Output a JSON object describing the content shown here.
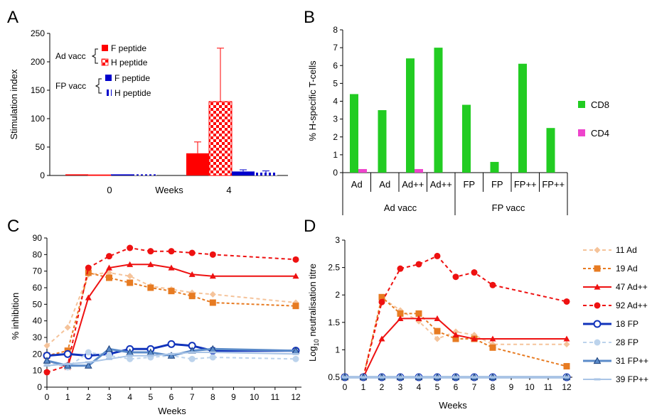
{
  "panels": {
    "A": {
      "letter": "A",
      "ylabel": "Stimulation index",
      "xlabel": "Weeks",
      "yticks": [
        "0",
        "50",
        "100",
        "150",
        "200",
        "250"
      ],
      "ylim": [
        0,
        250
      ],
      "groups": [
        "0",
        "4"
      ],
      "legend": {
        "ad_group": "Ad vacc",
        "fp_group": "FP vacc",
        "items": [
          "F peptide",
          "H peptide",
          "F peptide",
          "H peptide"
        ]
      }
    },
    "B": {
      "letter": "B",
      "ylabel": "% H-specific T-cells",
      "yticks": [
        "0",
        "1",
        "2",
        "3",
        "4",
        "5",
        "6",
        "7",
        "8"
      ],
      "ylim": [
        0,
        8
      ],
      "categories": [
        "Ad",
        "Ad",
        "Ad++",
        "Ad++",
        "FP",
        "FP",
        "FP++",
        "FP++"
      ],
      "groups": [
        "Ad vacc",
        "FP vacc"
      ],
      "legend": [
        "CD8",
        "CD4"
      ]
    },
    "C": {
      "letter": "C",
      "ylabel": "% inhibition",
      "xlabel": "Weeks",
      "yticks": [
        "0",
        "10",
        "20",
        "30",
        "40",
        "50",
        "60",
        "70",
        "80",
        "90"
      ],
      "xticks": [
        "0",
        "1",
        "2",
        "3",
        "4",
        "5",
        "6",
        "7",
        "8",
        "9",
        "10",
        "11",
        "12"
      ],
      "ylim": [
        0,
        90
      ]
    },
    "D": {
      "letter": "D",
      "ylabel_main": "Log",
      "ylabel_sub": "10",
      "ylabel_rest": " neutralisation titre",
      "xlabel": "Weeks",
      "yticks": [
        "0.5",
        "1",
        "1.5",
        "2",
        "2.5",
        "3"
      ],
      "xticks": [
        "0",
        "1",
        "2",
        "3",
        "4",
        "5",
        "6",
        "7",
        "8",
        "9",
        "10",
        "11",
        "12"
      ],
      "ylim": [
        0.5,
        3
      ]
    }
  },
  "line_legend": [
    "11 Ad",
    "19 Ad",
    "47 Ad++",
    "92 Ad++",
    "18 FP",
    "28 FP",
    "31 FP++",
    "39 FP++"
  ],
  "chart_data": [
    {
      "panel": "A",
      "type": "bar",
      "title": "",
      "xlabel": "Weeks",
      "ylabel": "Stimulation index",
      "ylim": [
        0,
        250
      ],
      "categories": [
        "0",
        "4"
      ],
      "series": [
        {
          "name": "Ad vacc F peptide",
          "values": [
            2,
            39
          ],
          "error": [
            1,
            20
          ],
          "color": "#ff0000",
          "pattern": "solid"
        },
        {
          "name": "Ad vacc H peptide",
          "values": [
            1,
            130
          ],
          "error": [
            0.5,
            94
          ],
          "color": "#ff0000",
          "pattern": "checker"
        },
        {
          "name": "FP vacc F peptide",
          "values": [
            2,
            7
          ],
          "error": [
            0.5,
            3
          ],
          "color": "#0000cc",
          "pattern": "solid"
        },
        {
          "name": "FP vacc H peptide",
          "values": [
            2,
            5
          ],
          "error": [
            1,
            3
          ],
          "color": "#0000cc",
          "pattern": "dashed"
        }
      ],
      "grid": false,
      "legend_position": "top-left"
    },
    {
      "panel": "B",
      "type": "bar",
      "title": "",
      "ylabel": "% H-specific T-cells",
      "ylim": [
        0,
        8
      ],
      "categories": [
        "Ad",
        "Ad",
        "Ad++",
        "Ad++",
        "FP",
        "FP",
        "FP++",
        "FP++"
      ],
      "category_groups": [
        "Ad vacc",
        "Ad vacc",
        "Ad vacc",
        "Ad vacc",
        "FP vacc",
        "FP vacc",
        "FP vacc",
        "FP vacc"
      ],
      "series": [
        {
          "name": "CD8",
          "values": [
            4.4,
            3.5,
            6.4,
            7.0,
            3.8,
            0.6,
            6.1,
            2.5
          ],
          "color": "#22cc22"
        },
        {
          "name": "CD4",
          "values": [
            0.2,
            0,
            0.2,
            0,
            0,
            0,
            0,
            0
          ],
          "color": "#ee44cc"
        }
      ],
      "grid": false,
      "legend_position": "right"
    },
    {
      "panel": "C",
      "type": "line",
      "title": "",
      "xlabel": "Weeks",
      "ylabel": "% inhibition",
      "ylim": [
        0,
        90
      ],
      "xlim": [
        0,
        12
      ],
      "series": [
        {
          "name": "11 Ad",
          "x": [
            0,
            1,
            2,
            3,
            4,
            5,
            6,
            7,
            8,
            12
          ],
          "y": [
            25,
            36,
            68,
            69,
            67,
            61,
            59,
            57,
            56,
            51
          ],
          "color": "#f5c39a",
          "dash": "5,4",
          "marker": "diamond",
          "width": 2
        },
        {
          "name": "19 Ad",
          "x": [
            0,
            1,
            2,
            3,
            4,
            5,
            6,
            7,
            8,
            12
          ],
          "y": [
            19,
            22,
            69,
            66,
            63,
            60,
            58,
            55,
            51,
            49
          ],
          "color": "#e77b22",
          "dash": "4,3",
          "marker": "square",
          "width": 2
        },
        {
          "name": "47 Ad++",
          "x": [
            0,
            1,
            2,
            3,
            4,
            5,
            6,
            7,
            8,
            12
          ],
          "y": [
            16,
            12,
            54,
            72,
            74,
            74,
            72,
            68,
            67,
            67
          ],
          "color": "#ee1111",
          "dash": "",
          "marker": "triangle",
          "width": 2
        },
        {
          "name": "92 Ad++",
          "x": [
            0,
            1,
            2,
            3,
            4,
            5,
            6,
            7,
            8,
            12
          ],
          "y": [
            9,
            13,
            72,
            79,
            84,
            82,
            82,
            81,
            80,
            77
          ],
          "color": "#ee1111",
          "dash": "5,4",
          "marker": "circle",
          "width": 2
        },
        {
          "name": "18 FP",
          "x": [
            0,
            1,
            2,
            3,
            4,
            5,
            6,
            7,
            8,
            12
          ],
          "y": [
            19,
            20,
            19,
            20,
            23,
            23,
            26,
            25,
            22,
            22
          ],
          "color": "#1133bb",
          "dash": "",
          "marker": "circle-open",
          "width": 3
        },
        {
          "name": "28 FP",
          "x": [
            0,
            1,
            2,
            3,
            4,
            5,
            6,
            7,
            8,
            12
          ],
          "y": [
            15,
            12,
            21,
            19,
            17,
            18,
            19,
            17,
            18,
            17
          ],
          "color": "#bcd3ec",
          "dash": "5,4",
          "marker": "circle",
          "width": 2
        },
        {
          "name": "31 FP++",
          "x": [
            0,
            1,
            2,
            3,
            4,
            5,
            6,
            7,
            8,
            12
          ],
          "y": [
            16,
            13,
            13,
            23,
            21,
            21,
            19,
            22,
            23,
            22
          ],
          "color": "#5b8bc9",
          "dash": "",
          "marker": "triangle-open",
          "width": 3
        },
        {
          "name": "39 FP++",
          "x": [
            0,
            1,
            2,
            3,
            4,
            5,
            6,
            7,
            8,
            12
          ],
          "y": [
            13,
            14,
            15,
            17,
            19,
            19,
            20,
            21,
            21,
            20
          ],
          "color": "#a9c4e6",
          "dash": "",
          "marker": "dash",
          "width": 2
        }
      ],
      "grid": false
    },
    {
      "panel": "D",
      "type": "line",
      "title": "",
      "xlabel": "Weeks",
      "ylabel": "Log10 neutralisation titre",
      "ylim": [
        0.5,
        3
      ],
      "xlim": [
        0,
        12
      ],
      "series": [
        {
          "name": "11 Ad",
          "x": [
            0,
            1,
            2,
            3,
            4,
            5,
            6,
            7,
            8,
            12
          ],
          "y": [
            0.5,
            0.5,
            1.95,
            1.72,
            1.52,
            1.2,
            1.33,
            1.27,
            1.1,
            1.1
          ],
          "color": "#f5c39a",
          "dash": "5,4",
          "marker": "diamond",
          "width": 2
        },
        {
          "name": "19 Ad",
          "x": [
            0,
            1,
            2,
            3,
            4,
            5,
            6,
            7,
            8,
            12
          ],
          "y": [
            0.5,
            0.5,
            1.96,
            1.66,
            1.66,
            1.34,
            1.2,
            1.2,
            1.04,
            0.7
          ],
          "color": "#e77b22",
          "dash": "4,3",
          "marker": "square",
          "width": 2
        },
        {
          "name": "47 Ad++",
          "x": [
            0,
            1,
            2,
            3,
            4,
            5,
            6,
            7,
            8,
            12
          ],
          "y": [
            0.5,
            0.5,
            1.2,
            1.57,
            1.57,
            1.57,
            1.27,
            1.2,
            1.2,
            1.2
          ],
          "color": "#ee1111",
          "dash": "",
          "marker": "triangle",
          "width": 2
        },
        {
          "name": "92 Ad++",
          "x": [
            0,
            1,
            2,
            3,
            4,
            5,
            6,
            7,
            8,
            12
          ],
          "y": [
            0.5,
            0.5,
            1.87,
            2.48,
            2.56,
            2.71,
            2.33,
            2.41,
            2.18,
            1.88
          ],
          "color": "#ee1111",
          "dash": "5,4",
          "marker": "circle",
          "width": 2
        },
        {
          "name": "18 FP",
          "x": [
            0,
            1,
            2,
            3,
            4,
            5,
            6,
            7,
            8,
            12
          ],
          "y": [
            0.5,
            0.5,
            0.5,
            0.5,
            0.5,
            0.5,
            0.5,
            0.5,
            0.5,
            0.5
          ],
          "color": "#1133bb",
          "dash": "",
          "marker": "circle-open",
          "width": 3
        },
        {
          "name": "28 FP",
          "x": [
            0,
            1,
            2,
            3,
            4,
            5,
            6,
            7,
            8,
            12
          ],
          "y": [
            0.5,
            0.5,
            0.5,
            0.5,
            0.5,
            0.5,
            0.5,
            0.5,
            0.5,
            0.5
          ],
          "color": "#bcd3ec",
          "dash": "5,4",
          "marker": "circle",
          "width": 2
        },
        {
          "name": "31 FP++",
          "x": [
            0,
            1,
            2,
            3,
            4,
            5,
            6,
            7,
            8,
            12
          ],
          "y": [
            0.5,
            0.5,
            0.5,
            0.5,
            0.5,
            0.5,
            0.5,
            0.5,
            0.5,
            0.5
          ],
          "color": "#5b8bc9",
          "dash": "",
          "marker": "triangle-open",
          "width": 3
        },
        {
          "name": "39 FP++",
          "x": [
            0,
            1,
            2,
            3,
            4,
            5,
            6,
            7,
            8,
            12
          ],
          "y": [
            0.5,
            0.5,
            0.5,
            0.5,
            0.5,
            0.5,
            0.5,
            0.5,
            0.5,
            0.5
          ],
          "color": "#a9c4e6",
          "dash": "",
          "marker": "dash",
          "width": 2
        }
      ],
      "grid": false,
      "legend_position": "right"
    }
  ]
}
